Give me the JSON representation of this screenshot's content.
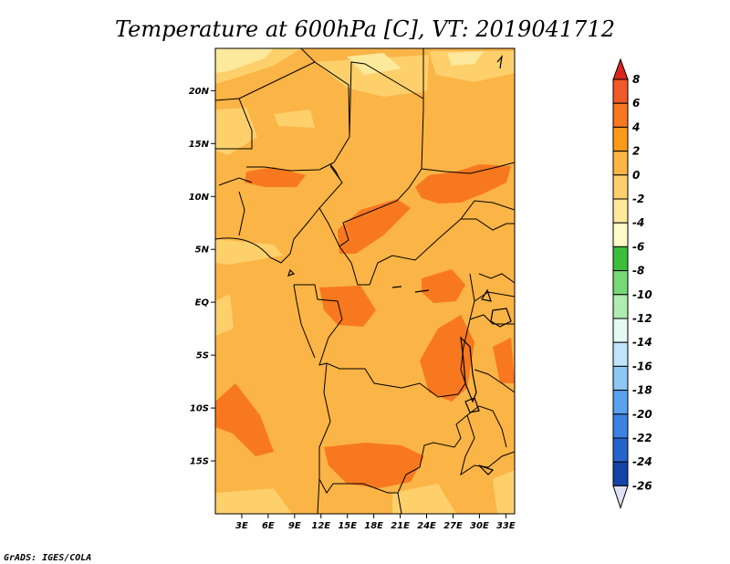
{
  "title": "Temperature at 600hPa [C], VT: 2019041712",
  "footer": "GrADS: IGES/COLA",
  "map": {
    "lon_range": [
      0,
      34
    ],
    "lat_range": [
      -20,
      24
    ],
    "lat_ticks": [
      {
        "value": 20,
        "label": "20N"
      },
      {
        "value": 15,
        "label": "15N"
      },
      {
        "value": 10,
        "label": "10N"
      },
      {
        "value": 5,
        "label": "5N"
      },
      {
        "value": 0,
        "label": "EQ"
      },
      {
        "value": -5,
        "label": "5S"
      },
      {
        "value": -10,
        "label": "10S"
      },
      {
        "value": -15,
        "label": "15S"
      }
    ],
    "lon_ticks": [
      {
        "value": 3,
        "label": "3E"
      },
      {
        "value": 6,
        "label": "6E"
      },
      {
        "value": 9,
        "label": "9E"
      },
      {
        "value": 12,
        "label": "12E"
      },
      {
        "value": 15,
        "label": "15E"
      },
      {
        "value": 18,
        "label": "18E"
      },
      {
        "value": 21,
        "label": "21E"
      },
      {
        "value": 24,
        "label": "24E"
      },
      {
        "value": 27,
        "label": "27E"
      },
      {
        "value": 30,
        "label": "30E"
      },
      {
        "value": 33,
        "label": "33E"
      }
    ]
  },
  "colorbar": {
    "levels": [
      {
        "label": "8",
        "color": "#f05a28"
      },
      {
        "label": "6",
        "color": "#f87820"
      },
      {
        "label": "4",
        "color": "#fa9a18"
      },
      {
        "label": "2",
        "color": "#fbb446"
      },
      {
        "label": "0",
        "color": "#fdd06c"
      },
      {
        "label": "-2",
        "color": "#fde99c"
      },
      {
        "label": "-4",
        "color": "#fefbc8"
      },
      {
        "label": "-6",
        "color": "#3cbe3c"
      },
      {
        "label": "-8",
        "color": "#78d878"
      },
      {
        "label": "-10",
        "color": "#b0ecb0"
      },
      {
        "label": "-12",
        "color": "#e4f8f4"
      },
      {
        "label": "-14",
        "color": "#c0e4f8"
      },
      {
        "label": "-16",
        "color": "#8ec6f4"
      },
      {
        "label": "-18",
        "color": "#5aa2ee"
      },
      {
        "label": "-20",
        "color": "#3c82e2"
      },
      {
        "label": "-22",
        "color": "#2664cc"
      },
      {
        "label": "-24",
        "color": "#1442a6"
      },
      {
        "label": "-26",
        "color": "#0a1c74"
      }
    ],
    "above_color": "#d8261e",
    "below_color": "#e0e0f4"
  },
  "fill_colors": {
    "background": "#fbb446",
    "warm": "#f87820",
    "cool": "#fdd06c",
    "coolest": "#fde99c"
  }
}
